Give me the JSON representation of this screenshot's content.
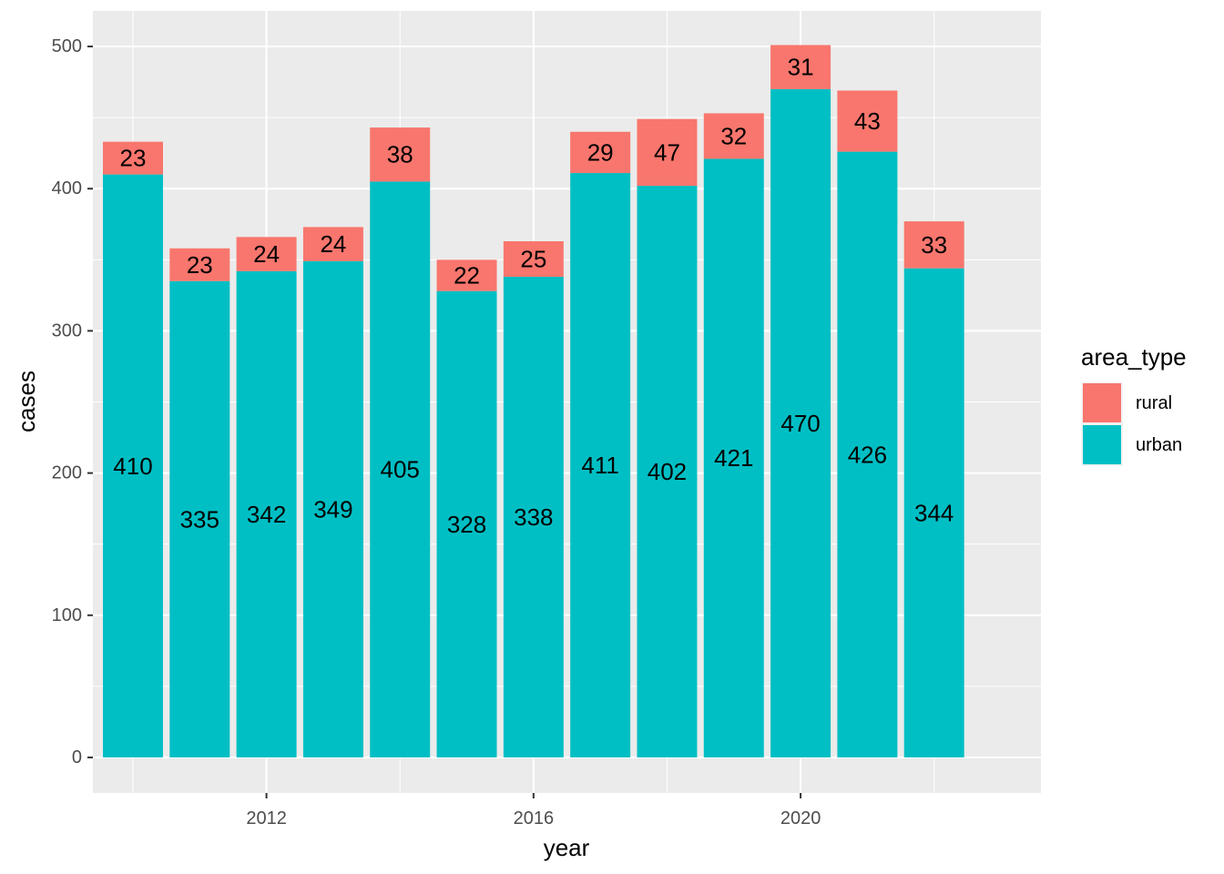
{
  "chart_data": {
    "type": "bar",
    "stacked": true,
    "xlabel": "year",
    "ylabel": "cases",
    "x": [
      2010,
      2011,
      2012,
      2013,
      2014,
      2015,
      2016,
      2017,
      2018,
      2019,
      2020,
      2021,
      2022
    ],
    "x_ticks": [
      2012,
      2016,
      2020
    ],
    "y_ticks": [
      0,
      100,
      200,
      300,
      400,
      500
    ],
    "ylim": [
      -25,
      525
    ],
    "xlim": [
      2009.4,
      2023.6
    ],
    "grid": true,
    "legend": {
      "title": "area_type",
      "position": "right"
    },
    "series": [
      {
        "name": "urban",
        "color": "#00BFC4",
        "values": [
          410,
          335,
          342,
          349,
          405,
          328,
          338,
          411,
          402,
          421,
          470,
          426,
          344
        ]
      },
      {
        "name": "rural",
        "color": "#F8766D",
        "values": [
          23,
          23,
          24,
          24,
          38,
          22,
          25,
          29,
          47,
          32,
          31,
          43,
          33
        ]
      }
    ]
  }
}
